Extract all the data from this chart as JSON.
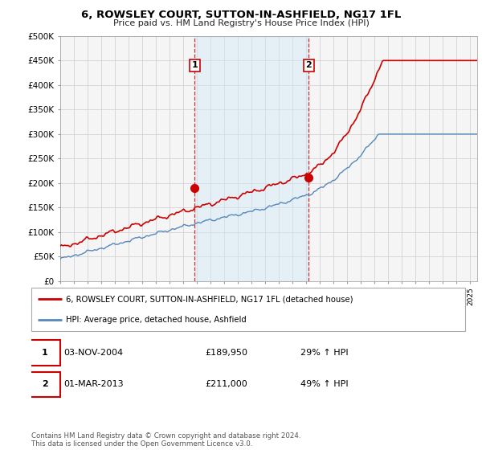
{
  "title": "6, ROWSLEY COURT, SUTTON-IN-ASHFIELD, NG17 1FL",
  "subtitle": "Price paid vs. HM Land Registry's House Price Index (HPI)",
  "ylabel_ticks": [
    "£0",
    "£50K",
    "£100K",
    "£150K",
    "£200K",
    "£250K",
    "£300K",
    "£350K",
    "£400K",
    "£450K",
    "£500K"
  ],
  "ylim": [
    0,
    500000
  ],
  "xlim_start": 1995.0,
  "xlim_end": 2025.5,
  "sale1_x": 2004.84,
  "sale1_y": 189950,
  "sale2_x": 2013.17,
  "sale2_y": 211000,
  "legend_line1": "6, ROWSLEY COURT, SUTTON-IN-ASHFIELD, NG17 1FL (detached house)",
  "legend_line2": "HPI: Average price, detached house, Ashfield",
  "table_row1": [
    "1",
    "03-NOV-2004",
    "£189,950",
    "29% ↑ HPI"
  ],
  "table_row2": [
    "2",
    "01-MAR-2013",
    "£211,000",
    "49% ↑ HPI"
  ],
  "footer": "Contains HM Land Registry data © Crown copyright and database right 2024.\nThis data is licensed under the Open Government Licence v3.0.",
  "red_color": "#cc0000",
  "blue_color": "#5588bb",
  "shade_color": "#d0e8f8",
  "vline_color": "#cc0000",
  "grid_color": "#cccccc",
  "bg_color": "#f5f5f5"
}
